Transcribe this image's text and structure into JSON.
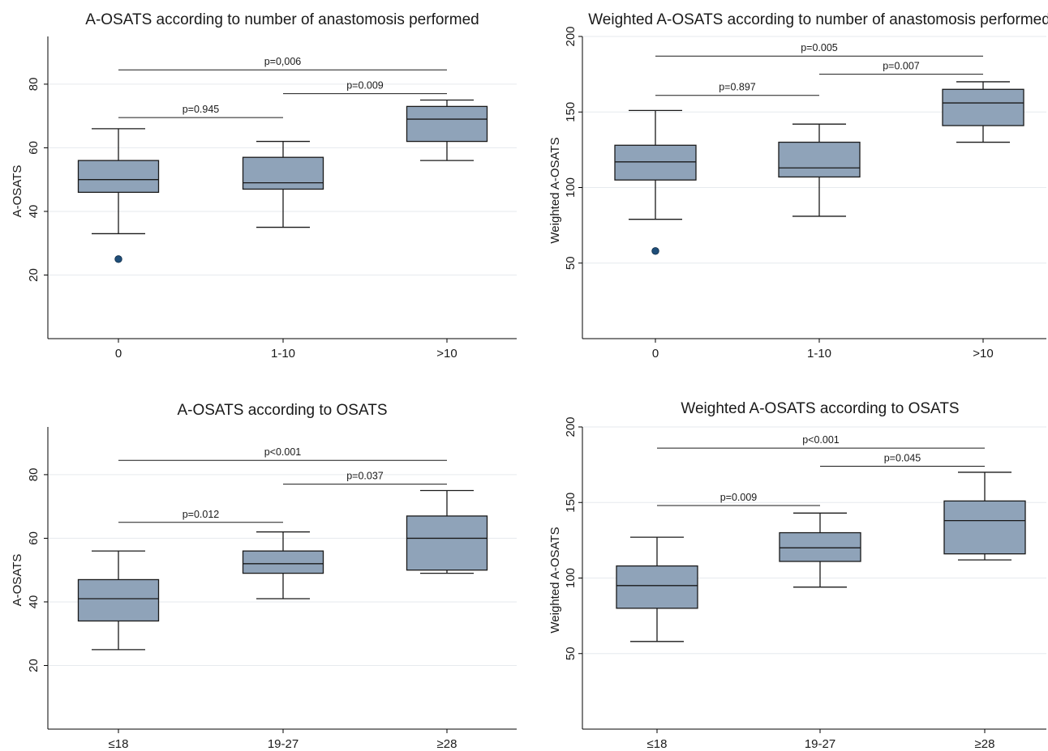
{
  "chart_data": [
    {
      "type": "box",
      "title": "A-OSATS according to number of anastomosis performed",
      "xlabel": "",
      "ylabel": "A-OSATS",
      "ylim": [
        0,
        95
      ],
      "yticks": [
        20,
        40,
        60,
        80
      ],
      "grid": true,
      "box_color": "#8fa3b9",
      "outlier_color": "#1f4e79",
      "categories": [
        "0",
        "1-10",
        ">10"
      ],
      "boxes": [
        {
          "min": 33,
          "q1": 46,
          "median": 50,
          "q3": 56,
          "max": 66,
          "outliers": [
            25
          ]
        },
        {
          "min": 35,
          "q1": 47,
          "median": 49,
          "q3": 57,
          "max": 62,
          "outliers": []
        },
        {
          "min": 56,
          "q1": 62,
          "median": 69,
          "q3": 73,
          "max": 75,
          "outliers": []
        }
      ],
      "comparisons": [
        {
          "from": 0,
          "to": 1,
          "y": 69.5,
          "label": "p=0.945"
        },
        {
          "from": 1,
          "to": 2,
          "y": 77,
          "label": "p=0.009"
        },
        {
          "from": 0,
          "to": 2,
          "y": 84.5,
          "label": "p=0,006"
        }
      ]
    },
    {
      "type": "box",
      "title": "Weighted A-OSATS according to number of anastomosis performed",
      "xlabel": "",
      "ylabel": "Weighted A-OSATS",
      "ylim": [
        0,
        200
      ],
      "yticks": [
        50,
        100,
        150,
        200
      ],
      "grid": true,
      "box_color": "#8fa3b9",
      "outlier_color": "#1f4e79",
      "categories": [
        "0",
        "1-10",
        ">10"
      ],
      "boxes": [
        {
          "min": 79,
          "q1": 105,
          "median": 117,
          "q3": 128,
          "max": 151,
          "outliers": [
            58
          ]
        },
        {
          "min": 81,
          "q1": 107,
          "median": 113,
          "q3": 130,
          "max": 142,
          "outliers": []
        },
        {
          "min": 130,
          "q1": 141,
          "median": 156,
          "q3": 165,
          "max": 170,
          "outliers": []
        }
      ],
      "comparisons": [
        {
          "from": 0,
          "to": 1,
          "y": 161,
          "label": "p=0.897"
        },
        {
          "from": 1,
          "to": 2,
          "y": 175,
          "label": "p=0.007"
        },
        {
          "from": 0,
          "to": 2,
          "y": 187,
          "label": "p=0.005"
        }
      ]
    },
    {
      "type": "box",
      "title": "A-OSATS according to OSATS",
      "xlabel": "",
      "ylabel": "A-OSATS",
      "ylim": [
        0,
        95
      ],
      "yticks": [
        20,
        40,
        60,
        80
      ],
      "grid": true,
      "box_color": "#8fa3b9",
      "outlier_color": "#1f4e79",
      "categories": [
        "≤18",
        "19-27",
        "≥28"
      ],
      "boxes": [
        {
          "min": 25,
          "q1": 34,
          "median": 41,
          "q3": 47,
          "max": 56,
          "outliers": []
        },
        {
          "min": 41,
          "q1": 49,
          "median": 52,
          "q3": 56,
          "max": 62,
          "outliers": []
        },
        {
          "min": 49,
          "q1": 50,
          "median": 60,
          "q3": 67,
          "max": 75,
          "outliers": []
        }
      ],
      "comparisons": [
        {
          "from": 0,
          "to": 1,
          "y": 65,
          "label": "p=0.012"
        },
        {
          "from": 1,
          "to": 2,
          "y": 77,
          "label": "p=0.037"
        },
        {
          "from": 0,
          "to": 2,
          "y": 84.5,
          "label": "p<0.001"
        }
      ]
    },
    {
      "type": "box",
      "title": "Weighted A-OSATS according to OSATS",
      "xlabel": "",
      "ylabel": "Weighted A-OSATS",
      "ylim": [
        0,
        200
      ],
      "yticks": [
        50,
        100,
        150,
        200
      ],
      "grid": true,
      "box_color": "#8fa3b9",
      "outlier_color": "#1f4e79",
      "categories": [
        "≤18",
        "19-27",
        "≥28"
      ],
      "boxes": [
        {
          "min": 58,
          "q1": 80,
          "median": 95,
          "q3": 108,
          "max": 127,
          "outliers": []
        },
        {
          "min": 94,
          "q1": 111,
          "median": 120,
          "q3": 130,
          "max": 143,
          "outliers": []
        },
        {
          "min": 112,
          "q1": 116,
          "median": 138,
          "q3": 151,
          "max": 170,
          "outliers": []
        }
      ],
      "comparisons": [
        {
          "from": 0,
          "to": 1,
          "y": 148,
          "label": "p=0.009"
        },
        {
          "from": 1,
          "to": 2,
          "y": 174,
          "label": "p=0.045"
        },
        {
          "from": 0,
          "to": 2,
          "y": 186,
          "label": "p<0.001"
        }
      ]
    }
  ]
}
